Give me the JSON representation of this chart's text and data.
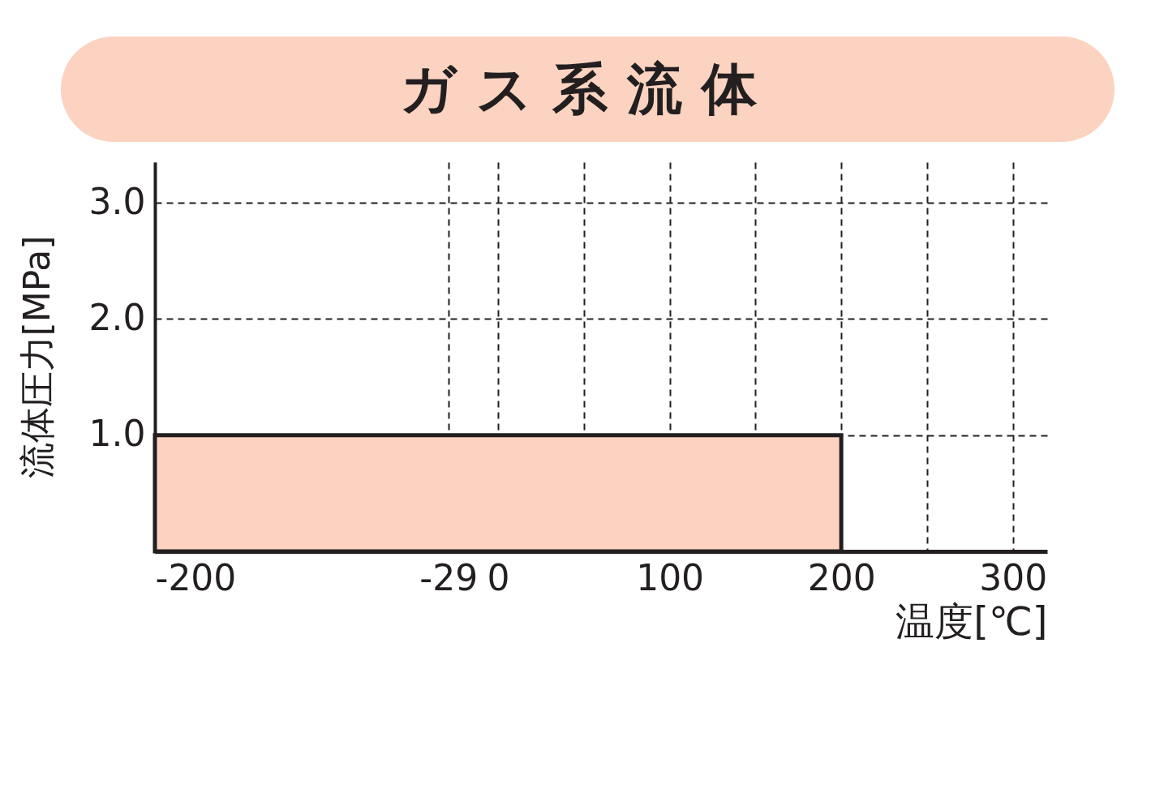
{
  "chart_data": {
    "type": "area",
    "title": "ガス系流体",
    "xlabel": "温度[℃]",
    "ylabel": "流体圧力[MPa]",
    "x": [
      -200,
      200
    ],
    "series": [
      {
        "color": "#fbd3c0",
        "values": [
          1.0,
          1.0
        ]
      }
    ],
    "xlim": [
      -200,
      320
    ],
    "xticks": [
      -200,
      -29,
      0,
      {
        "value": 50,
        "label": null
      },
      100,
      {
        "value": 150,
        "label": null
      },
      200,
      {
        "value": 250,
        "label": null
      },
      300
    ],
    "ylim": [
      0,
      3.35
    ],
    "yticks": [
      {
        "value": 1,
        "label": "1.0"
      },
      {
        "value": 2,
        "label": "2.0"
      },
      {
        "value": 3,
        "label": "3.0"
      }
    ],
    "grid": true
  }
}
